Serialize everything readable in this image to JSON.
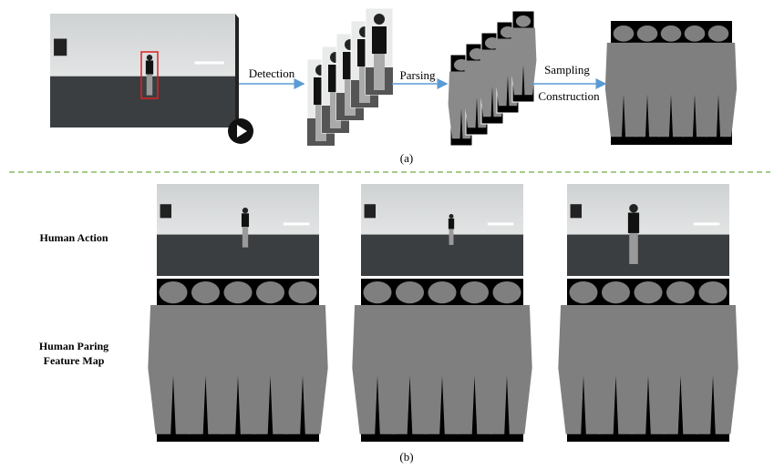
{
  "panel_a": {
    "steps": [
      "Detection",
      "Parsing",
      "Sampling",
      "Construction"
    ],
    "caption": "(a)"
  },
  "panel_b": {
    "row_labels": [
      "Human Action",
      "Human Paring",
      "Feature Map"
    ],
    "caption": "(b)"
  }
}
